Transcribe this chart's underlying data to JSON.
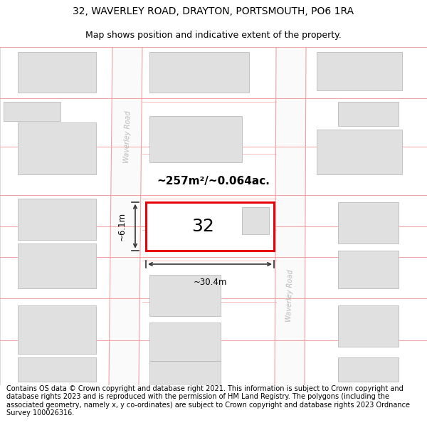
{
  "title_line1": "32, WAVERLEY ROAD, DRAYTON, PORTSMOUTH, PO6 1RA",
  "title_line2": "Map shows position and indicative extent of the property.",
  "footer_text": "Contains OS data © Crown copyright and database right 2021. This information is subject to Crown copyright and database rights 2023 and is reproduced with the permission of HM Land Registry. The polygons (including the associated geometry, namely x, y co-ordinates) are subject to Crown copyright and database rights 2023 Ordnance Survey 100026316.",
  "area_label": "~257m²/~0.064ac.",
  "plot_number": "32",
  "dim_width": "~30.4m",
  "dim_height": "~6.1m",
  "road_label": "Waverley Road",
  "plot_border_color": "#e8000a",
  "boundary_color": "#f4a0a0",
  "building_fill": "#e0e0e0",
  "building_edge": "#b0b0b0",
  "road_fill": "#f5f5f5",
  "map_bg": "#ffffff",
  "title_fontsize": 10,
  "subtitle_fontsize": 9,
  "footer_fontsize": 7
}
